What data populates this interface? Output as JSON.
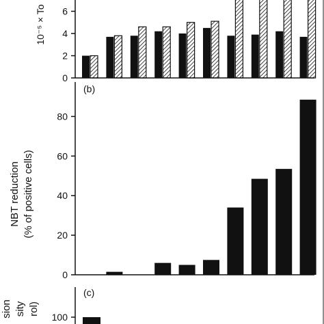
{
  "chart_data": [
    {
      "panel": "a",
      "type": "bar",
      "ylabel": "10⁻⁵ × To",
      "ylim": [
        0,
        8
      ],
      "yticks": [
        0,
        2,
        4,
        6
      ],
      "grid": false,
      "colors": {
        "solid": "#111111",
        "hatched": "#111111"
      },
      "series": [
        {
          "pattern": "solid",
          "values": [
            2.0,
            3.7,
            3.8,
            4.2,
            4.0,
            4.5,
            3.8,
            3.9,
            4.2,
            3.7
          ]
        },
        {
          "pattern": "hatched",
          "values": [
            2.0,
            3.8,
            4.6,
            4.6,
            5.0,
            5.1,
            8.0,
            8.0,
            8.0,
            8.0
          ]
        }
      ]
    },
    {
      "panel": "b",
      "type": "bar",
      "panel_label": "(b)",
      "ylabel": [
        "NBT reduction",
        "(% of positive cells)"
      ],
      "ylim": [
        0,
        90
      ],
      "yticks": [
        0,
        20,
        40,
        60,
        80
      ],
      "grid": false,
      "colors": {
        "bar": "#111111"
      },
      "values": [
        0,
        1.5,
        0,
        6,
        5,
        7.5,
        34,
        48.5,
        53.5,
        88.5
      ]
    },
    {
      "panel": "c",
      "type": "bar",
      "panel_label": "(c)",
      "ylabel": [
        "sion",
        "sity",
        "rol)"
      ],
      "yticks": [
        100
      ],
      "grid": false,
      "colors": {
        "bar": "#111111"
      },
      "values": [
        100
      ]
    }
  ]
}
